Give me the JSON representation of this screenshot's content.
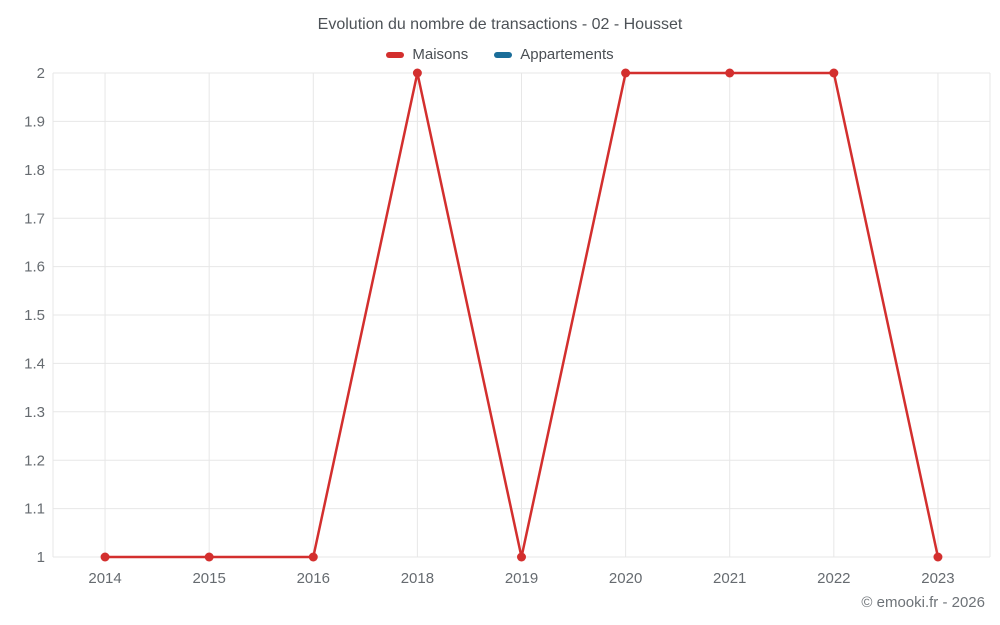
{
  "title": "Evolution du nombre de transactions - 02 - Housset",
  "legend": {
    "items": [
      {
        "label": "Maisons",
        "color": "#d32f2e"
      },
      {
        "label": "Appartements",
        "color": "#1a6d99"
      }
    ]
  },
  "footer": {
    "copyright": "© emooki.fr - 2026"
  },
  "colors": {
    "grid": "#e7e7e7",
    "axis": "#dedede",
    "tick_text": "#666b70",
    "background": "#ffffff"
  },
  "chart_data": {
    "type": "line",
    "title": "Evolution du nombre de transactions - 02 - Housset",
    "categories": [
      "2014",
      "2015",
      "2016",
      "2018",
      "2019",
      "2020",
      "2021",
      "2022",
      "2023"
    ],
    "series": [
      {
        "name": "Maisons",
        "color": "#d32f2e",
        "values": [
          1,
          1,
          1,
          2,
          1,
          2,
          2,
          2,
          1
        ]
      },
      {
        "name": "Appartements",
        "color": "#1a6d99",
        "values": []
      }
    ],
    "xlabel": "",
    "ylabel": "",
    "ylim": [
      1,
      2
    ],
    "yticks": [
      1,
      1.1,
      1.2,
      1.3,
      1.4,
      1.5,
      1.6,
      1.7,
      1.8,
      1.9,
      2
    ],
    "ytick_labels": [
      "1",
      "1.1",
      "1.2",
      "1.3",
      "1.4",
      "1.5",
      "1.6",
      "1.7",
      "1.8",
      "1.9",
      "2"
    ],
    "grid": true,
    "legend_position": "top"
  }
}
